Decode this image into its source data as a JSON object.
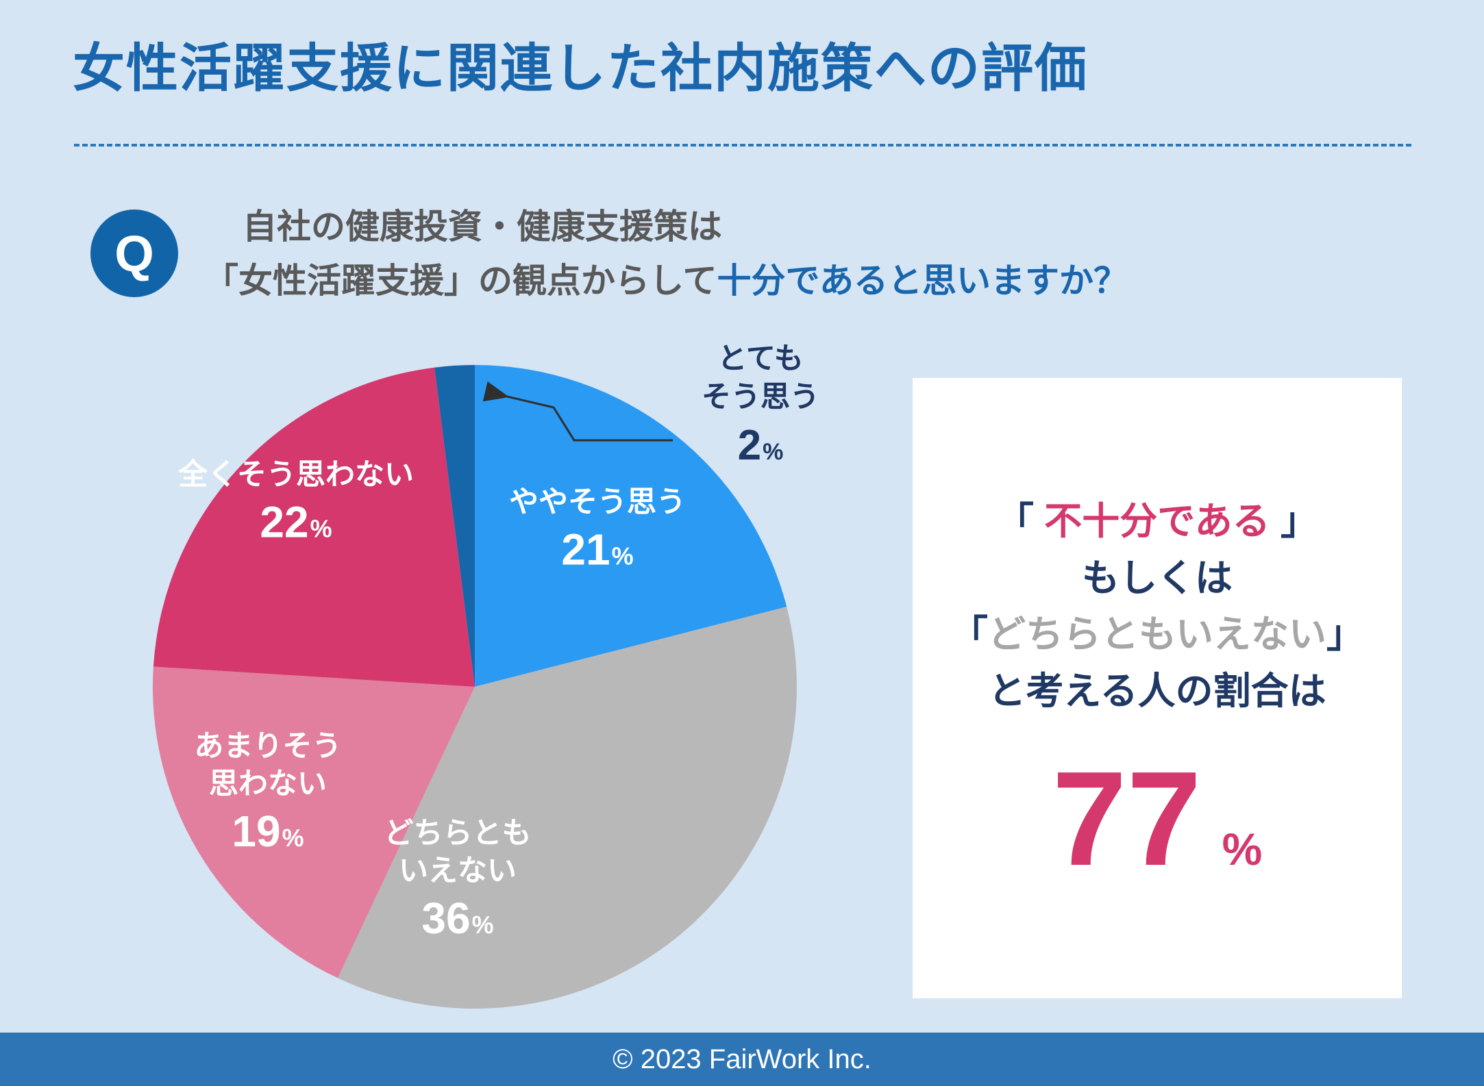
{
  "page": {
    "title": "女性活躍支援に関連した社内施策への評価",
    "footer_text": "© 2023 FairWork Inc.",
    "background_color": "#d5e5f4",
    "footer_color": "#2e75b6"
  },
  "question": {
    "icon_letter": "Q",
    "line1": "自社の健康投資・健康支援策は",
    "line2_prefix": "「女性活躍支援」の観点からして",
    "line2_highlight": "十分であると思いますか？"
  },
  "colors": {
    "title_blue": "#1a66ad",
    "navy_text": "#1f3864",
    "crimson": "#d4386d",
    "gray_text": "#a6a6a6",
    "question_gray": "#595959",
    "q_circle_blue": "#1264a8"
  },
  "summary_card": {
    "line1_open": "「 ",
    "line1_highlight": "不十分である",
    "line1_close": " 」",
    "line2": "もしくは",
    "line3_open": "「",
    "line3_gray": "どちらともいえない",
    "line3_close": "」",
    "line4": "と考える人の割合は",
    "big_value": "77",
    "big_unit": "%"
  },
  "chart_data": {
    "type": "pie",
    "title": "自社の健康投資・健康支援策は「女性活躍支援」の観点からして十分であると思いますか？",
    "unit": "%",
    "rotation_deg": -7.2,
    "legend_position": "none",
    "labels_on_slices": true,
    "slices": [
      {
        "label": "とてもそう思う",
        "value": 2,
        "color": "#1667a9",
        "label_placement": "outside",
        "label_lines": [
          "とても",
          "そう思う"
        ]
      },
      {
        "label": "ややそう思う",
        "value": 21,
        "color": "#2b9af3",
        "label_placement": "inside",
        "label_lines": [
          "ややそう思う"
        ],
        "label_angle_deg": 37.8,
        "label_r_frac": 0.62
      },
      {
        "label": "どちらともいえない",
        "value": 36,
        "color": "#b8b8b8",
        "label_placement": "inside",
        "label_lines": [
          "どちらとも",
          "いえない"
        ],
        "label_angle_deg": 185,
        "label_r_frac": 0.6
      },
      {
        "label": "あまりそう思わない",
        "value": 19,
        "color": "#e27e9e",
        "label_placement": "inside",
        "label_lines": [
          "あまりそう",
          "思わない"
        ],
        "label_angle_deg": 243,
        "label_r_frac": 0.72
      },
      {
        "label": "全くそう思わない",
        "value": 22,
        "color": "#d4386d",
        "label_placement": "inside",
        "label_lines": [
          "全くそう思わない"
        ],
        "label_angle_deg": 316,
        "label_r_frac": 0.8
      }
    ]
  }
}
